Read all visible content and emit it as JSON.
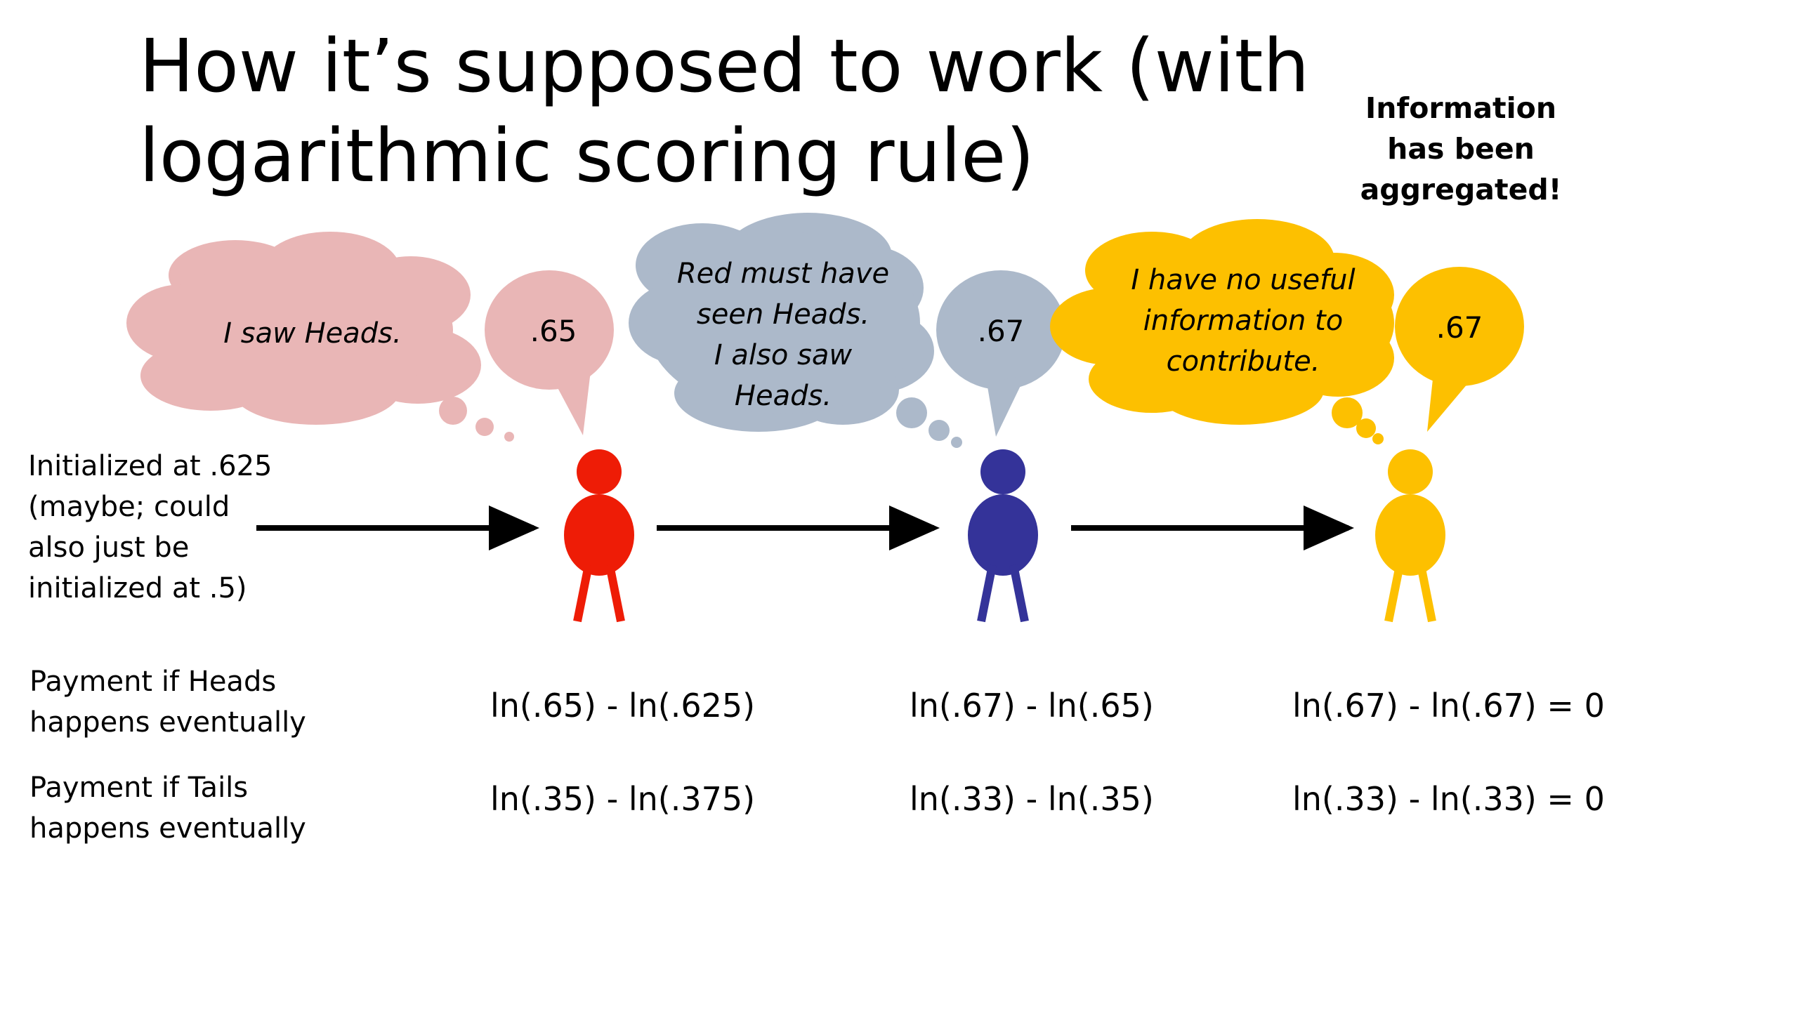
{
  "title": "How it’s supposed to work (with logarithmic scoring rule)",
  "note": [
    "Information",
    "has been",
    "aggregated!"
  ],
  "initial": [
    "Initialized at .625",
    "(maybe; could",
    "also just be",
    "initialized at .5)"
  ],
  "colors": {
    "red": "#ee1c06",
    "blue": "#343399",
    "yellow": "#fdc000",
    "pink": "#e9b6b6",
    "gray": "#acb9ca",
    "gold": "#fdc000"
  },
  "agents": [
    {
      "thought": [
        "I saw Heads."
      ],
      "prediction": ".65"
    },
    {
      "thought": [
        "Red must have",
        "seen Heads.",
        "I also saw",
        "Heads."
      ],
      "prediction": ".67"
    },
    {
      "thought": [
        "I have no useful",
        "information to",
        "contribute."
      ],
      "prediction": ".67"
    }
  ],
  "rows": [
    {
      "label": [
        "Payment if Heads",
        "happens eventually"
      ],
      "values": [
        "ln(.65) - ln(.625)",
        "ln(.67) - ln(.65)",
        "ln(.67) - ln(.67) = 0"
      ]
    },
    {
      "label": [
        "Payment if Tails",
        "happens eventually"
      ],
      "values": [
        "ln(.35) - ln(.375)",
        "ln(.33) - ln(.35)",
        "ln(.33) - ln(.33) = 0"
      ]
    }
  ]
}
